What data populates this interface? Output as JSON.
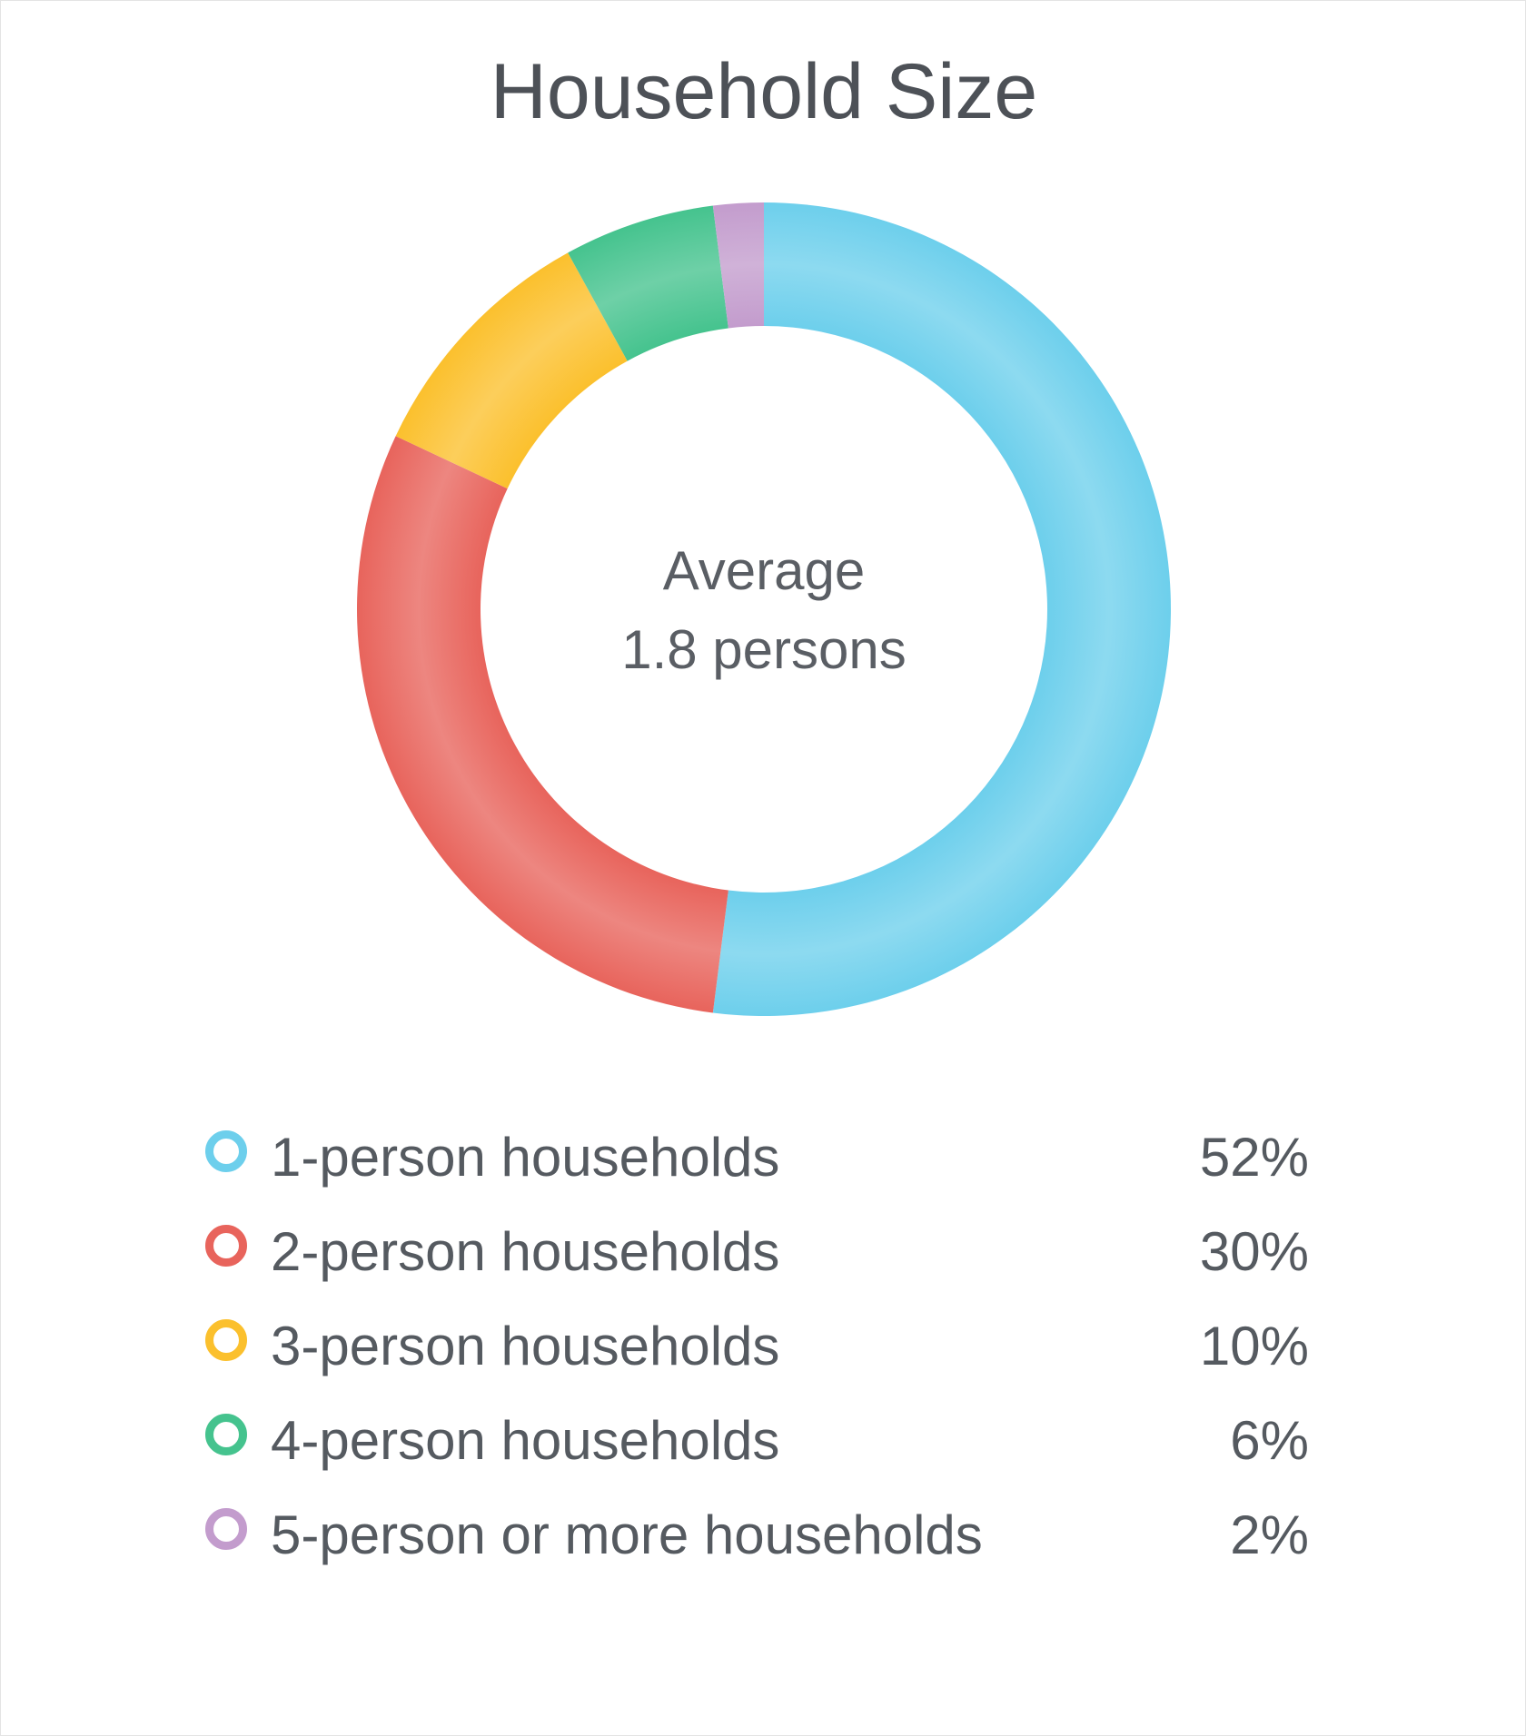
{
  "chart_data": {
    "type": "pie",
    "title": "Household Size",
    "center_label": {
      "line1": "Average",
      "line2": "1.8 persons"
    },
    "categories": [
      "1-person households",
      "2-person households",
      "3-person households",
      "4-person households",
      "5-person or more households"
    ],
    "values": [
      52,
      30,
      10,
      6,
      2
    ],
    "value_labels": [
      "52%",
      "30%",
      "10%",
      "6%",
      "2%"
    ],
    "colors": [
      "#6dcfec",
      "#e8645c",
      "#fbc02d",
      "#45c38e",
      "#c39ccd"
    ],
    "donut": true,
    "legend_position": "bottom"
  }
}
